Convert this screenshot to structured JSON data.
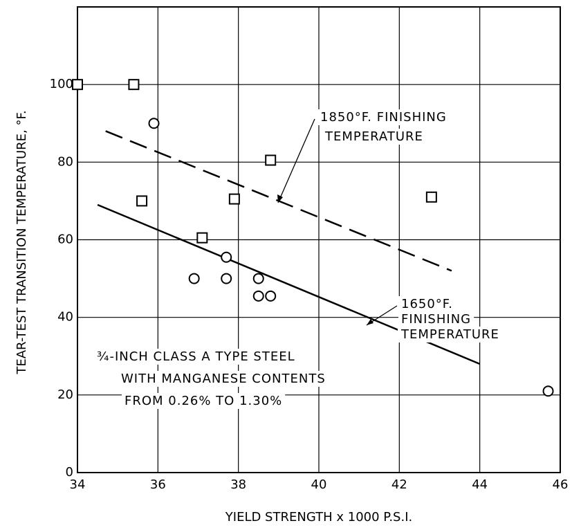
{
  "chart_data": {
    "type": "scatter",
    "x_label": "YIELD STRENGTH x 1000 P.S.I.",
    "y_label": "TEAR-TEST TRANSITION TEMPERATURE, °F.",
    "xlim": [
      34,
      46
    ],
    "xticks": [
      34,
      36,
      38,
      40,
      42,
      44,
      46
    ],
    "ylim": [
      0,
      120
    ],
    "yticks": [
      0,
      20,
      40,
      60,
      80,
      100
    ],
    "grid": true,
    "series": [
      {
        "marker": "square",
        "color": "#000000",
        "x": [
          34,
          35.4,
          35.6,
          37.1,
          37.9,
          38.8,
          42.8
        ],
        "values": [
          100,
          100,
          70,
          60.5,
          70.5,
          80.5,
          71
        ]
      },
      {
        "marker": "circle",
        "color": "#000000",
        "x": [
          35.9,
          36.9,
          37.7,
          37.7,
          38.5,
          38.5,
          38.8,
          45.7
        ],
        "values": [
          90,
          50,
          55.5,
          50,
          50,
          45.5,
          45.5,
          21
        ]
      }
    ],
    "trend_lines": [
      {
        "dashed": true,
        "x": [
          34.7,
          43.3
        ],
        "values": [
          88,
          52
        ]
      },
      {
        "dashed": false,
        "x": [
          34.5,
          44
        ],
        "values": [
          69,
          28
        ]
      }
    ],
    "annotations": [
      {
        "lines": [
          "1850°F. FINISHING",
          "TEMPERATURE"
        ]
      },
      {
        "lines": [
          "1650°F.",
          "FINISHING",
          "TEMPERATURE"
        ]
      },
      {
        "lines": [
          "¾-INCH CLASS A TYPE STEEL",
          "WITH MANGANESE CONTENTS",
          "FROM 0.26% TO 1.30%"
        ]
      }
    ]
  }
}
